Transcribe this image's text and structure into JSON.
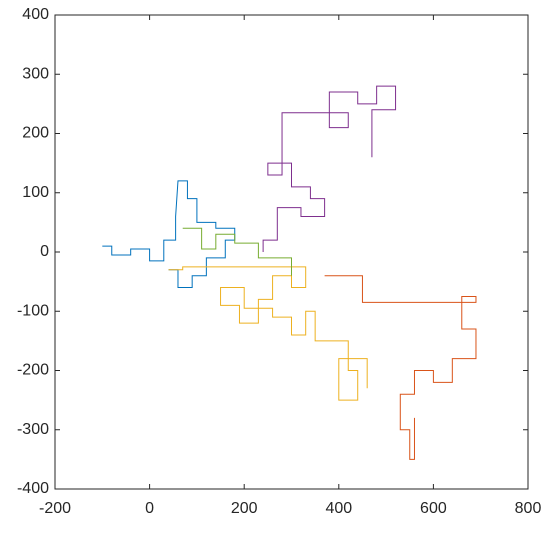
{
  "chart_data": {
    "type": "line",
    "xlim": [
      -200,
      800
    ],
    "ylim": [
      -400,
      400
    ],
    "xticks": [
      -200,
      0,
      200,
      400,
      600,
      800
    ],
    "yticks": [
      -400,
      -300,
      -200,
      -100,
      0,
      100,
      200,
      300,
      400
    ],
    "grid": false,
    "series": [
      {
        "color": "#0072bd",
        "x": [
          -100,
          -80,
          -80,
          -40,
          -40,
          0,
          0,
          30,
          30,
          55,
          55,
          60,
          80,
          80,
          100,
          100,
          140,
          140,
          180,
          180,
          160,
          160,
          120,
          120,
          90,
          90,
          60,
          60,
          40
        ],
        "values": [
          10,
          10,
          -5,
          -5,
          5,
          5,
          -15,
          -15,
          20,
          20,
          60,
          120,
          120,
          90,
          90,
          50,
          50,
          40,
          40,
          20,
          20,
          -10,
          -10,
          -40,
          -40,
          -60,
          -60,
          -30,
          -30
        ]
      },
      {
        "color": "#edb120",
        "x": [
          40,
          70,
          70,
          330,
          330,
          300,
          300,
          260,
          260,
          230,
          230,
          190,
          190,
          150,
          150,
          200,
          200,
          260,
          260,
          300,
          300,
          330,
          330,
          350,
          350,
          420,
          420,
          440,
          440,
          400,
          400,
          460,
          460
        ],
        "values": [
          -30,
          -30,
          -25,
          -25,
          -60,
          -60,
          -40,
          -40,
          -80,
          -80,
          -120,
          -120,
          -90,
          -90,
          -60,
          -60,
          -95,
          -95,
          -110,
          -110,
          -140,
          -140,
          -100,
          -100,
          -150,
          -150,
          -200,
          -200,
          -250,
          -250,
          -180,
          -180,
          -230
        ]
      },
      {
        "color": "#7e2f8e",
        "x": [
          240,
          240,
          270,
          270,
          320,
          320,
          370,
          370,
          340,
          340,
          300,
          300,
          250,
          250,
          280,
          280,
          420,
          420,
          380,
          380,
          440,
          440,
          480,
          480,
          520,
          520,
          470,
          470
        ],
        "values": [
          0,
          20,
          20,
          75,
          75,
          60,
          60,
          90,
          90,
          110,
          110,
          150,
          150,
          130,
          130,
          235,
          235,
          210,
          210,
          270,
          270,
          250,
          250,
          280,
          280,
          240,
          240,
          160
        ]
      },
      {
        "color": "#d95319",
        "x": [
          370,
          450,
          450,
          690,
          690,
          660,
          660,
          690,
          690,
          640,
          640,
          600,
          600,
          560,
          560,
          530,
          530,
          550,
          550,
          560,
          560
        ],
        "values": [
          -40,
          -40,
          -85,
          -85,
          -75,
          -75,
          -130,
          -130,
          -180,
          -180,
          -220,
          -220,
          -200,
          -200,
          -240,
          -240,
          -300,
          -300,
          -350,
          -350,
          -280
        ]
      },
      {
        "color": "#77ac30",
        "x": [
          300,
          300,
          230,
          230,
          180,
          180,
          140,
          140,
          110,
          110,
          70
        ],
        "values": [
          -40,
          -10,
          -10,
          15,
          15,
          30,
          30,
          5,
          5,
          40,
          40
        ]
      }
    ]
  }
}
